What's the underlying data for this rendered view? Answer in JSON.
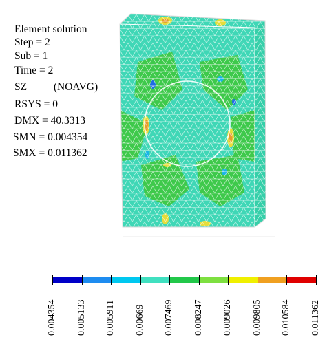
{
  "info": {
    "lines": [
      "Element solution",
      "Step = 2",
      "Sub = 1",
      "Time = 2",
      "SZ          (NOAVG)",
      "RSYS = 0",
      "DMX = 40.3313",
      "SMN = 0.004354",
      "SMX = 0.011362"
    ]
  },
  "legend": {
    "values": [
      "0.004354",
      "0.005133",
      "0.005911",
      "0.00669",
      "0.007469",
      "0.008247",
      "0.009026",
      "0.009805",
      "0.010584",
      "0.011362"
    ],
    "colors": [
      "#0000c8",
      "#1e8cf0",
      "#00c8f0",
      "#40e0c0",
      "#22c84a",
      "#7ee040",
      "#f0f000",
      "#f0a020",
      "#e00000"
    ]
  },
  "colors": {
    "mesh_base": "#3fd7b6",
    "mesh_lines": "#ffffff",
    "green_band": "#3ec94b",
    "yellow_band": "#e6dd3a",
    "orange_band": "#e79a2d",
    "cyan_band": "#1ab4e6",
    "blue_band": "#1e6be6"
  }
}
